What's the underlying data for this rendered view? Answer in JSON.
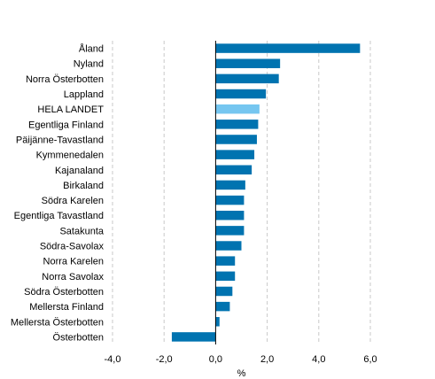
{
  "chart_data": {
    "type": "bar",
    "orientation": "horizontal",
    "categories": [
      "Åland",
      "Nyland",
      "Norra Österbotten",
      "Lappland",
      "HELA LANDET",
      "Egentliga Finland",
      "Päijänne-Tavastland",
      "Kymmenedalen",
      "Kajanaland",
      "Birkaland",
      "Södra Karelen",
      "Egentliga Tavastland",
      "Satakunta",
      "Södra-Savolax",
      "Norra Karelen",
      "Norra Savolax",
      "Södra Österbotten",
      "Mellersta Finland",
      "Mellersta Österbotten",
      "Österbotten"
    ],
    "values": [
      5.6,
      2.5,
      2.45,
      1.95,
      1.7,
      1.65,
      1.6,
      1.5,
      1.4,
      1.15,
      1.1,
      1.1,
      1.1,
      1.0,
      0.75,
      0.75,
      0.65,
      0.55,
      0.15,
      -1.7
    ],
    "highlight_category": "HELA LANDET",
    "colors": {
      "bar": "#0073b0",
      "highlight": "#75c6f0"
    },
    "xlim": [
      -4,
      6
    ],
    "xticks": [
      -4,
      -2,
      0,
      2,
      4,
      6
    ],
    "xtick_labels": [
      "-4,0",
      "-2,0",
      "0,0",
      "2,0",
      "4,0",
      "6,0"
    ],
    "xlabel": "%",
    "grid": true
  }
}
